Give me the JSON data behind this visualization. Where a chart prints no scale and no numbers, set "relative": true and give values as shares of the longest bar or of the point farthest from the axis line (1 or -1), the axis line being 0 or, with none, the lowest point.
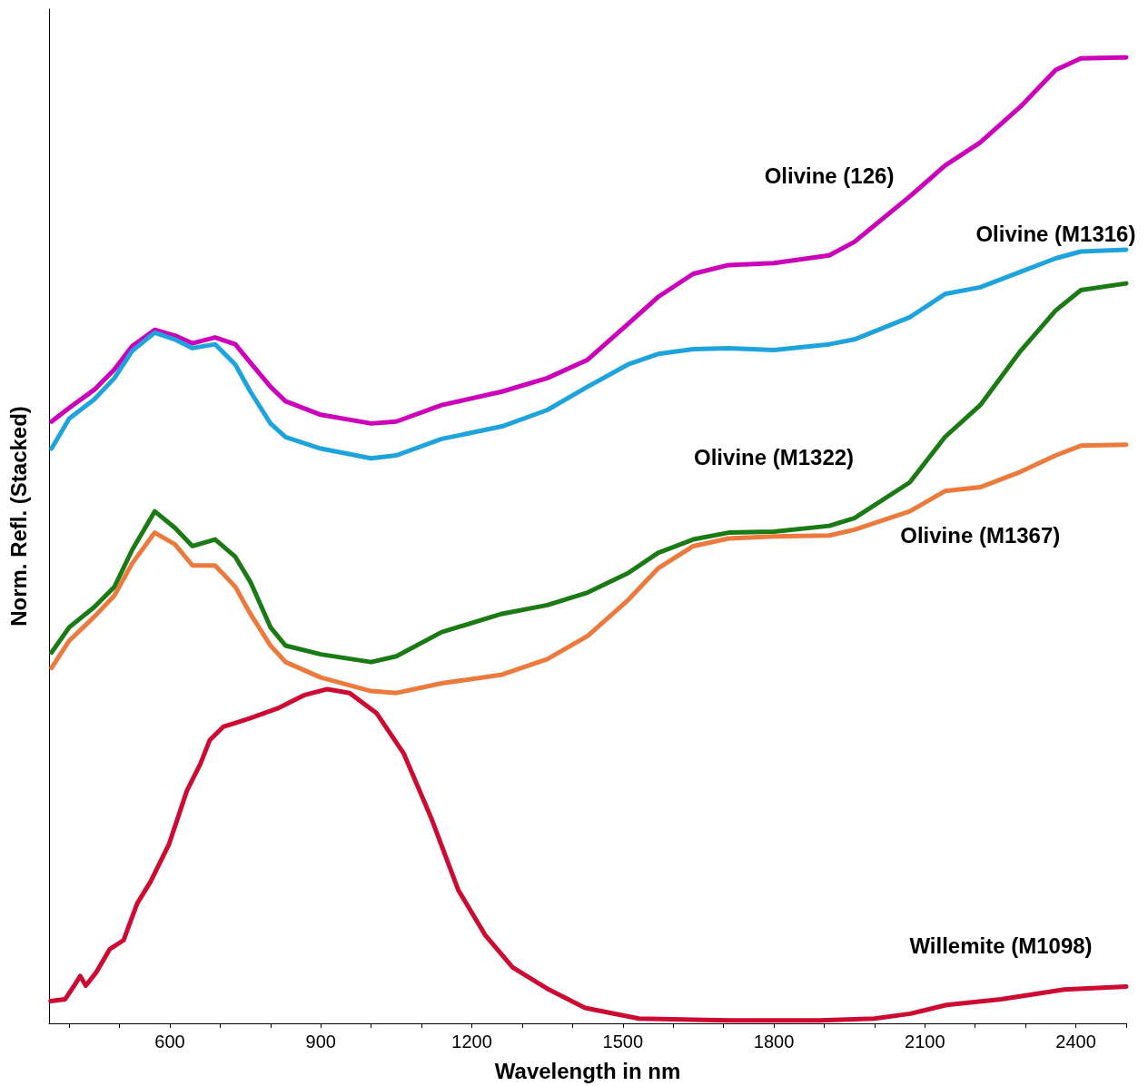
{
  "chart_data": {
    "type": "line",
    "relative": true,
    "xlabel": "Wavelength in nm",
    "ylabel": "Norm. Refl. (Stacked)",
    "xlim": [
      360,
      2500
    ],
    "xticks": [
      {
        "value": 400,
        "label": null
      },
      {
        "value": 500,
        "label": null
      },
      600,
      {
        "value": 700,
        "label": null
      },
      {
        "value": 800,
        "label": null
      },
      900,
      {
        "value": 1000,
        "label": null
      },
      {
        "value": 1100,
        "label": null
      },
      1200,
      {
        "value": 1300,
        "label": null
      },
      {
        "value": 1400,
        "label": null
      },
      1500,
      {
        "value": 1600,
        "label": null
      },
      {
        "value": 1700,
        "label": null
      },
      1800,
      {
        "value": 1900,
        "label": null
      },
      {
        "value": 2000,
        "label": null
      },
      2100,
      {
        "value": 2200,
        "label": null
      },
      {
        "value": 2300,
        "label": null
      },
      2400,
      {
        "value": 2500,
        "label": null
      }
    ],
    "tick_labels": "x",
    "grid": false,
    "legend": false,
    "marker": "none",
    "line_style": "solid",
    "x": [
      365,
      400,
      450,
      490,
      525,
      570,
      610,
      645,
      690,
      730,
      760,
      800,
      830,
      900,
      1000,
      1050,
      1140,
      1260,
      1350,
      1430,
      1510,
      1570,
      1640,
      1710,
      1800,
      1910,
      1960,
      2070,
      2140,
      2210,
      2290,
      2360,
      2410,
      2500
    ],
    "series": [
      {
        "name": "Olivine (126)",
        "color": "#cc00bb",
        "values": [
          0.623,
          0.637,
          0.656,
          0.677,
          0.701,
          0.718,
          0.712,
          0.704,
          0.71,
          0.703,
          0.684,
          0.659,
          0.644,
          0.63,
          0.621,
          0.623,
          0.64,
          0.654,
          0.668,
          0.687,
          0.724,
          0.752,
          0.776,
          0.785,
          0.787,
          0.795,
          0.809,
          0.856,
          0.888,
          0.912,
          0.949,
          0.987,
          0.999,
          1.0
        ]
      },
      {
        "name": "Olivine (M1316)",
        "color": "#1fa3dd",
        "values": [
          0.595,
          0.626,
          0.646,
          0.668,
          0.696,
          0.715,
          0.708,
          0.699,
          0.703,
          0.682,
          0.654,
          0.621,
          0.607,
          0.595,
          0.585,
          0.588,
          0.605,
          0.618,
          0.635,
          0.659,
          0.682,
          0.693,
          0.698,
          0.699,
          0.697,
          0.703,
          0.708,
          0.731,
          0.755,
          0.762,
          0.778,
          0.792,
          0.799,
          0.801
        ]
      },
      {
        "name": "Olivine (M1322)",
        "color": "#1a7a14",
        "values": [
          0.384,
          0.41,
          0.431,
          0.452,
          0.49,
          0.53,
          0.513,
          0.494,
          0.501,
          0.483,
          0.457,
          0.41,
          0.391,
          0.382,
          0.374,
          0.38,
          0.405,
          0.424,
          0.433,
          0.446,
          0.466,
          0.487,
          0.501,
          0.508,
          0.509,
          0.515,
          0.523,
          0.56,
          0.607,
          0.64,
          0.696,
          0.738,
          0.759,
          0.766
        ]
      },
      {
        "name": "Olivine (M1367)",
        "color": "#ec7a3c",
        "values": [
          0.368,
          0.396,
          0.421,
          0.443,
          0.476,
          0.508,
          0.496,
          0.474,
          0.474,
          0.452,
          0.424,
          0.391,
          0.374,
          0.358,
          0.344,
          0.342,
          0.352,
          0.361,
          0.377,
          0.401,
          0.438,
          0.471,
          0.494,
          0.502,
          0.504,
          0.505,
          0.511,
          0.53,
          0.551,
          0.555,
          0.571,
          0.588,
          0.598,
          0.599
        ]
      },
      {
        "name": "Willemite (M1098)",
        "color": "#cc0a32",
        "x": [
          363,
          392,
          410,
          422,
          433,
          454,
          481,
          508,
          535,
          562,
          598,
          634,
          661,
          679,
          706,
          760,
          814,
          868,
          913,
          957,
          1011,
          1065,
          1119,
          1173,
          1227,
          1281,
          1353,
          1425,
          1532,
          1712,
          1892,
          2000,
          2071,
          2143,
          2251,
          2377,
          2500
        ],
        "values": [
          0.023,
          0.025,
          0.039,
          0.049,
          0.039,
          0.053,
          0.077,
          0.086,
          0.124,
          0.147,
          0.185,
          0.241,
          0.269,
          0.293,
          0.307,
          0.316,
          0.326,
          0.34,
          0.346,
          0.342,
          0.321,
          0.279,
          0.213,
          0.138,
          0.091,
          0.058,
          0.035,
          0.016,
          0.005,
          0.003,
          0.003,
          0.005,
          0.01,
          0.019,
          0.025,
          0.035,
          0.038
        ]
      }
    ]
  }
}
